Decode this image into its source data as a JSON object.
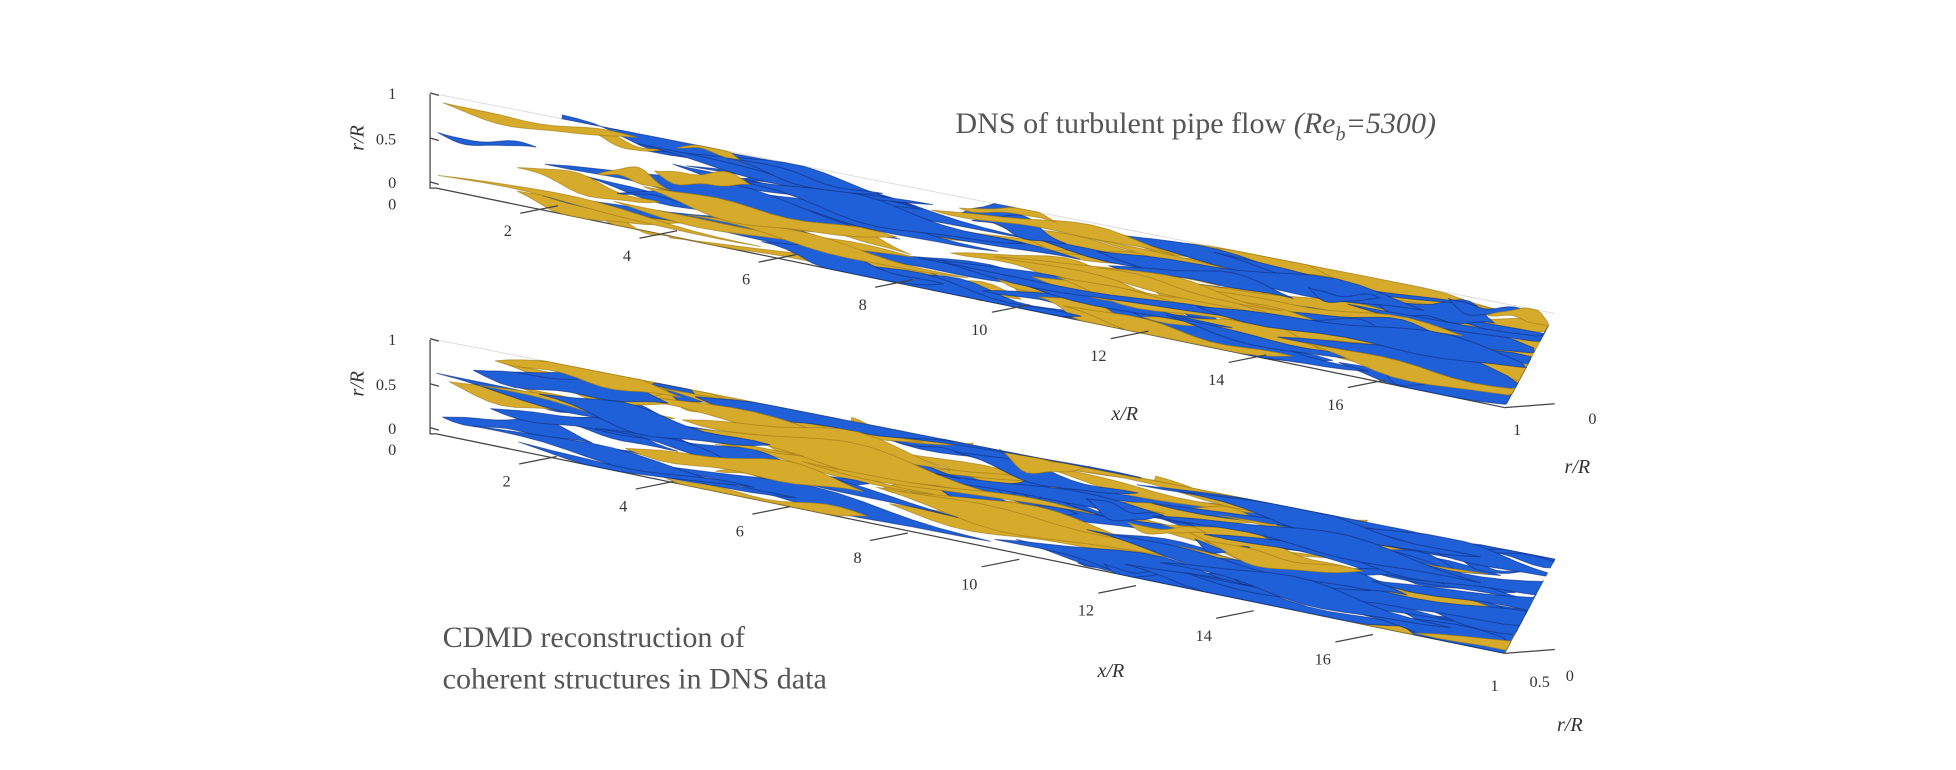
{
  "panels": [
    {
      "title": {
        "text": "DNS of turbulent pipe flow",
        "param_open": "(Re",
        "param_sub": "b",
        "param_close": "=5300)"
      },
      "x_label": "x/R",
      "x_ticks": [
        2,
        4,
        6,
        8,
        10,
        12,
        14,
        16
      ],
      "r_label": "r/R",
      "r_ticks": [
        1,
        0.5,
        0
      ],
      "r_zero": 0,
      "depth_label": "r/R",
      "depth_ticks": [
        1,
        0
      ]
    },
    {
      "caption": [
        "CDMD reconstruction of",
        "coherent structures in DNS data"
      ],
      "x_label": "x/R",
      "x_ticks": [
        2,
        4,
        6,
        8,
        10,
        12,
        14,
        16
      ],
      "r_label": "r/R",
      "r_ticks": [
        1,
        0.5,
        0
      ],
      "r_zero": 0,
      "depth_label": "r/R",
      "depth_ticks": [
        1,
        0.5,
        0
      ]
    }
  ]
}
